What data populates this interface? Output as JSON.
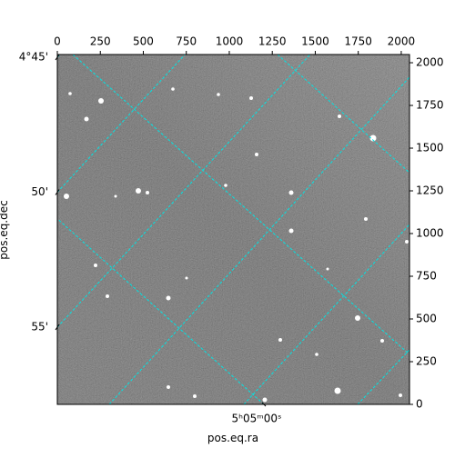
{
  "chart_data": {
    "type": "image",
    "xlabel": "pos.eq.ra",
    "ylabel": "pos.eq.dec",
    "xlim": [
      0,
      2048
    ],
    "xticks": [
      0,
      250,
      500,
      750,
      1000,
      1250,
      1500,
      1750,
      2000
    ],
    "ylim": [
      0,
      2048
    ],
    "yticks": [
      0,
      250,
      500,
      750,
      1000,
      1250,
      1500,
      1750,
      2000
    ],
    "dec_ticks": [
      {
        "value": 4.75,
        "label": "4°45'"
      },
      {
        "value": 4.833333,
        "label": "50'"
      },
      {
        "value": 4.916667,
        "label": "55'"
      }
    ],
    "ra_ticks": [
      {
        "value": 76.25,
        "label": "5ʰ05ᵐ00ˢ"
      }
    ],
    "grid_color": "#00e5e5"
  }
}
